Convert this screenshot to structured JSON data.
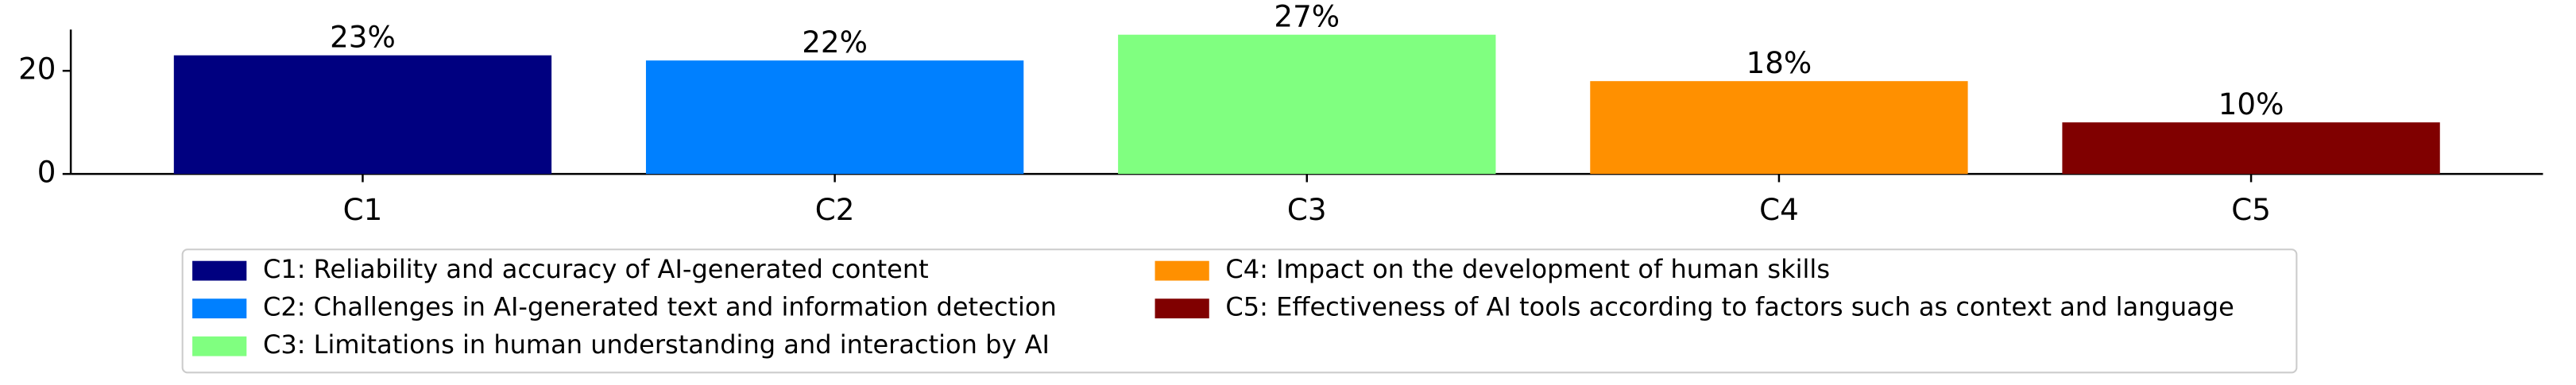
{
  "chart_data": {
    "type": "bar",
    "categories": [
      "C1",
      "C2",
      "C3",
      "C4",
      "C5"
    ],
    "values": [
      23,
      22,
      27,
      18,
      10
    ],
    "value_labels": [
      "23%",
      "22%",
      "27%",
      "18%",
      "10%"
    ],
    "colors": [
      "#000080",
      "#0080ff",
      "#80ff80",
      "#ff9000",
      "#800000"
    ],
    "legend": [
      "C1: Reliability and accuracy of AI-generated content",
      "C2: Challenges in AI-generated text and information detection",
      "C3: Limitations in human understanding and interaction by AI",
      "C4: Impact on the development of human skills",
      "C5: Effectiveness of AI tools according to factors such as context and language"
    ],
    "ylim": [
      0,
      28
    ],
    "yticks": [
      0,
      20
    ]
  }
}
